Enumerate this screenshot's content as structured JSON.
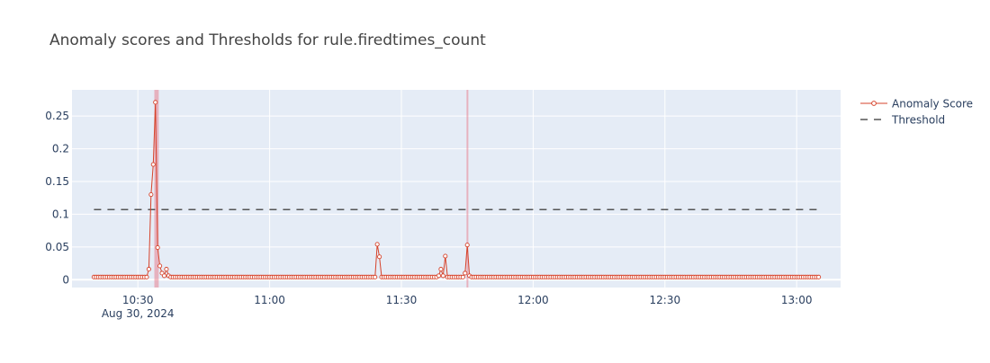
{
  "chart_data": {
    "type": "line",
    "title": "Anomaly scores and Thresholds for rule.firedtimes_count",
    "xlabel": "",
    "ylabel": "",
    "x_axis": {
      "kind": "time",
      "date_label": "Aug 30, 2024",
      "range": [
        "2024-08-30 10:15",
        "2024-08-30 13:10"
      ],
      "ticks": [
        "10:30",
        "11:00",
        "11:30",
        "12:00",
        "12:30",
        "13:00"
      ]
    },
    "y_axis": {
      "range": [
        -0.012,
        0.29
      ],
      "ticks": [
        0,
        0.05,
        0.1,
        0.15,
        0.2,
        0.25
      ],
      "tick_labels": [
        "0",
        "0.05",
        "0.1",
        "0.15",
        "0.2",
        "0.25"
      ]
    },
    "grid": true,
    "legend_position": "top-right",
    "colors": {
      "anomaly": "#d6432b",
      "threshold": "#555555",
      "highlight": "#e8828f",
      "plot_bg": "#e5ecf6",
      "grid": "#ffffff",
      "text": "#2a3f5f",
      "title": "#444444"
    },
    "series": [
      {
        "name": "Anomaly Score",
        "style": "line-markers",
        "baseline_value": 0.004,
        "start": "2024-08-30 10:20",
        "end": "2024-08-30 13:05",
        "step_seconds": 30,
        "spikes": [
          {
            "x": "2024-08-30 10:32:30",
            "y": 0.016
          },
          {
            "x": "2024-08-30 10:33:00",
            "y": 0.13
          },
          {
            "x": "2024-08-30 10:33:30",
            "y": 0.176
          },
          {
            "x": "2024-08-30 10:34:00",
            "y": 0.271
          },
          {
            "x": "2024-08-30 10:34:30",
            "y": 0.049
          },
          {
            "x": "2024-08-30 10:35:00",
            "y": 0.021
          },
          {
            "x": "2024-08-30 10:35:30",
            "y": 0.01
          },
          {
            "x": "2024-08-30 10:36:00",
            "y": 0.006
          },
          {
            "x": "2024-08-30 10:36:30",
            "y": 0.016
          },
          {
            "x": "2024-08-30 10:37:00",
            "y": 0.006
          },
          {
            "x": "2024-08-30 11:24:30",
            "y": 0.054
          },
          {
            "x": "2024-08-30 11:25:00",
            "y": 0.035
          },
          {
            "x": "2024-08-30 11:38:30",
            "y": 0.006
          },
          {
            "x": "2024-08-30 11:39:00",
            "y": 0.016
          },
          {
            "x": "2024-08-30 11:39:30",
            "y": 0.006
          },
          {
            "x": "2024-08-30 11:40:00",
            "y": 0.036
          },
          {
            "x": "2024-08-30 11:44:30",
            "y": 0.01
          },
          {
            "x": "2024-08-30 11:45:00",
            "y": 0.053
          },
          {
            "x": "2024-08-30 11:45:30",
            "y": 0.006
          }
        ]
      },
      {
        "name": "Threshold",
        "style": "dashed",
        "x": [
          "2024-08-30 10:20",
          "2024-08-30 13:05"
        ],
        "values": [
          0.107,
          0.107
        ]
      }
    ],
    "highlight_bands": [
      {
        "from": "2024-08-30 10:33:45",
        "to": "2024-08-30 10:34:45"
      },
      {
        "from": "2024-08-30 11:44:50",
        "to": "2024-08-30 11:45:10"
      }
    ]
  }
}
